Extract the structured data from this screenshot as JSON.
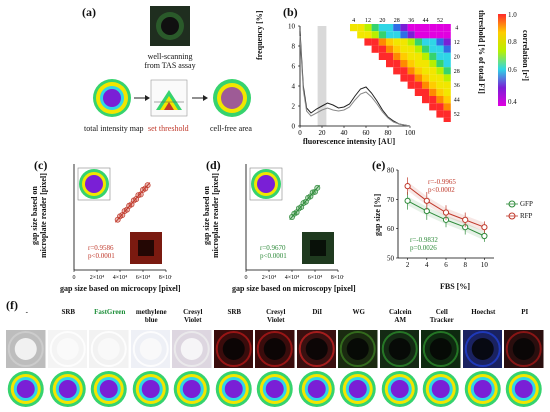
{
  "colors": {
    "bg": "#ffffff",
    "red_series": "#c0392b",
    "green_series": "#2e8b3a",
    "heat_purple": "#7a1fd6",
    "heat_yellow": "#f2e600",
    "heat_green": "#36d36e",
    "heat_cyan": "#2fd6e6",
    "threshold_band": "#d9d9d9"
  },
  "panel_a": {
    "letter": "(a)",
    "well_scan_caption": "well-scanning\nfrom TAS assay",
    "intensity_caption": "total intensity map",
    "threshold_caption": "set threshold",
    "cellfree_caption": "cell-free area"
  },
  "panel_b": {
    "letter": "(b)",
    "ylabel": "frequency [%]",
    "xlabel": "fluorescence intensity [AU]",
    "threshold_label": "threshold [% of total FI]",
    "correlation_label": "correlation [r²]",
    "matrix_top_ticks": [
      "4",
      "12",
      "20",
      "28",
      "36",
      "44",
      "52"
    ],
    "matrix_right_ticks": [
      "4",
      "12",
      "20",
      "28",
      "36",
      "44",
      "52"
    ],
    "colorbar_ticks": [
      "1.0",
      "0.8",
      "0.6",
      "0.4"
    ]
  },
  "panel_c": {
    "letter": "(c)",
    "ylabel": "gap size based on\nmicroplate reader [pixel]",
    "xlabel": "gap size based on microcopy [pixel]",
    "stats_r": "r=0.9586",
    "stats_p": "p<0.0001"
  },
  "panel_d": {
    "letter": "(d)",
    "ylabel": "gap size based on\nmicroplate reader [pixel]",
    "xlabel": "gap size based on microscopy [pixel]",
    "stats_r": "r=0.9670",
    "stats_p": "p<0.0001"
  },
  "panel_e": {
    "letter": "(e)",
    "ylabel": "gap size [%]",
    "xlabel": "FBS [%]",
    "rfp_r": "r=-0.9965",
    "rfp_p": "p<0.0002",
    "gfp_r": "r=-0.9832",
    "gfp_p": "p=0.0026",
    "legend_gfp": "GFP",
    "legend_rfp": "RFP"
  },
  "panel_f": {
    "letter": "(f)",
    "labels": [
      "-",
      "SRB",
      "FastGreen",
      "methylene\nblue",
      "Cresyl\nViolet",
      "SRB",
      "Cresyl\nViolet",
      "DiI",
      "WG",
      "Calcein\nAM",
      "Cell\nTracker",
      "Hoechst",
      "PI"
    ]
  },
  "chart_data": [
    {
      "type": "line",
      "ylabel": "frequency [%]",
      "xlabel": "fluorescence intensity [AU]",
      "xlim": [
        0,
        100
      ],
      "ylim": [
        0,
        10
      ],
      "x_ticks": [
        0,
        20,
        40,
        60,
        80,
        100
      ],
      "y_ticks": [
        0,
        2,
        4,
        6,
        8,
        10
      ],
      "threshold_band": [
        16,
        24
      ],
      "series": [
        {
          "x": [
            0,
            3,
            6,
            10,
            15,
            20,
            25,
            30,
            35,
            40,
            45,
            50,
            55,
            60,
            65,
            70,
            75,
            80,
            85,
            90,
            95,
            100
          ],
          "y": [
            9.5,
            4,
            1.8,
            1.3,
            1.7,
            2.0,
            2.3,
            2.1,
            1.8,
            1.9,
            2.2,
            3.0,
            3.7,
            3.9,
            3.3,
            2.5,
            1.6,
            0.9,
            0.5,
            0.2,
            0.1,
            0.0
          ]
        },
        {
          "x": [
            0,
            3,
            6,
            10,
            15,
            20,
            25,
            30,
            35,
            40,
            45,
            50,
            55,
            60,
            65,
            70,
            75,
            80,
            85,
            90,
            95,
            100
          ],
          "y": [
            9.0,
            3.6,
            1.5,
            1.0,
            1.3,
            1.6,
            1.8,
            1.6,
            1.5,
            1.6,
            1.9,
            2.6,
            3.2,
            3.4,
            2.9,
            2.2,
            1.4,
            0.8,
            0.4,
            0.2,
            0.1,
            0.0
          ]
        }
      ]
    },
    {
      "type": "scatter",
      "xlabel": "gap size based on microcopy [pixel]",
      "ylabel": "gap size based on microplate reader [pixel]",
      "xlim": [
        0,
        80000
      ],
      "x_ticks": [
        "0",
        "2×10⁴",
        "4×10⁴",
        "6×10⁴",
        "8×10⁴"
      ],
      "series": [
        {
          "name": "",
          "x": [
            38000,
            40000,
            42000,
            44000,
            46000,
            48000,
            50000,
            52000,
            54000,
            56000,
            58000,
            60000,
            62000,
            64000
          ],
          "y": [
            38000,
            40500,
            41500,
            44500,
            45500,
            48500,
            49500,
            52500,
            53500,
            56500,
            57000,
            60500,
            61500,
            64000
          ]
        }
      ]
    },
    {
      "type": "scatter",
      "xlabel": "gap size based on microscopy [pixel]",
      "ylabel": "gap size based on microplate reader [pixel]",
      "xlim": [
        0,
        80000
      ],
      "x_ticks": [
        "0",
        "2×10⁴",
        "4×10⁴",
        "6×10⁴",
        "8×10⁴"
      ],
      "series": [
        {
          "name": "",
          "x": [
            40000,
            42000,
            44000,
            46000,
            48000,
            50000,
            52000,
            54000,
            56000,
            58000,
            60000,
            62000
          ],
          "y": [
            40000,
            42500,
            43500,
            46500,
            47500,
            50500,
            51500,
            54500,
            55500,
            58500,
            59000,
            62000
          ]
        }
      ]
    },
    {
      "type": "line",
      "xlabel": "FBS [%]",
      "ylabel": "gap size [%]",
      "xlim": [
        1,
        11
      ],
      "ylim": [
        50,
        80
      ],
      "x_ticks": [
        2,
        4,
        6,
        8,
        10
      ],
      "y_ticks": [
        50,
        60,
        70,
        80
      ],
      "series": [
        {
          "name": "GFP",
          "x": [
            2,
            4,
            6,
            8,
            10
          ],
          "y": [
            69.5,
            66,
            63,
            60.5,
            57.5
          ],
          "err": [
            3,
            3,
            2.5,
            2.5,
            2
          ]
        },
        {
          "name": "RFP",
          "x": [
            2,
            4,
            6,
            8,
            10
          ],
          "y": [
            74.5,
            69.5,
            65.5,
            63,
            60.5
          ],
          "err": [
            3,
            3,
            2.5,
            2.5,
            2
          ]
        }
      ]
    }
  ]
}
